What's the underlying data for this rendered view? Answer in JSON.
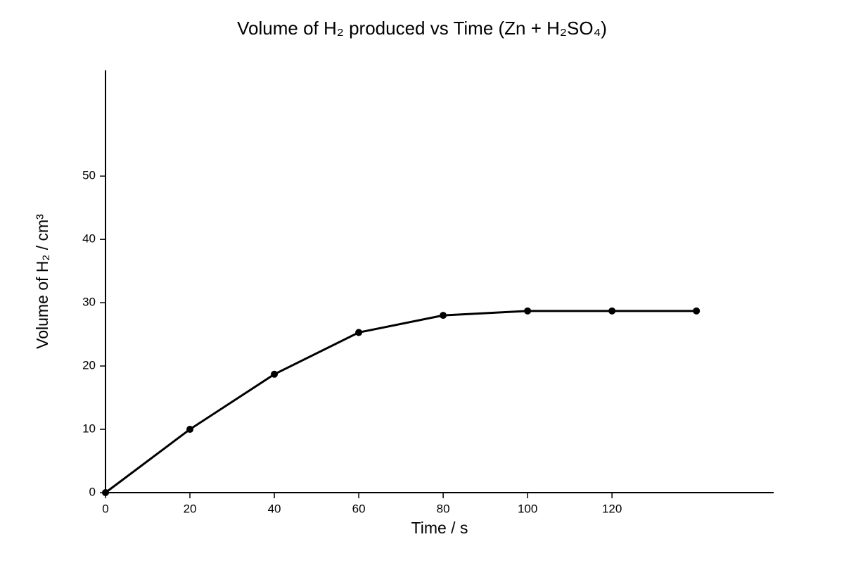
{
  "chart_data": {
    "type": "line",
    "title": "Volume of H₂ produced vs Time (Zn + H₂SO₄)",
    "x_label": "Time / s",
    "y_label": "Volume of H₂ / cm³",
    "x": [
      0,
      20,
      40,
      60,
      80,
      100,
      120,
      140
    ],
    "series": [
      {
        "color": "#000000",
        "values": [
          0,
          10,
          18.7,
          25.3,
          28,
          28.7,
          28.7,
          28.7
        ]
      }
    ],
    "xlim": [
      0,
      158.3
    ],
    "ylim": [
      0,
      66.7
    ],
    "xticks": [
      0,
      20,
      40,
      60,
      80,
      100,
      120
    ],
    "yticks": [
      0,
      10,
      20,
      30,
      40,
      50
    ],
    "grid": false
  }
}
